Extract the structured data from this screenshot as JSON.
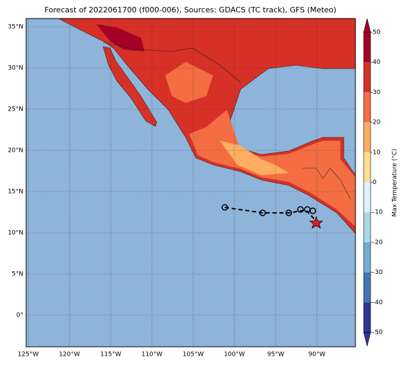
{
  "title": "Forecast of 2022061700 (f000-006), Sources: GDACS (TC track), GFS (Meteo)",
  "latitude_labels": [
    {
      "value": 35,
      "label": "35°N"
    },
    {
      "value": 30,
      "label": "30°N"
    },
    {
      "value": 25,
      "label": "25°N"
    },
    {
      "value": 20,
      "label": "20°N"
    },
    {
      "value": 15,
      "label": "15°N"
    },
    {
      "value": 10,
      "label": "10°N"
    },
    {
      "value": 5,
      "label": "5°N"
    },
    {
      "value": 0,
      "label": "0°"
    }
  ],
  "longitude_labels": [
    {
      "value": -125,
      "label": "125°W"
    },
    {
      "value": -120,
      "label": "120°W"
    },
    {
      "value": -115,
      "label": "115°W"
    },
    {
      "value": -110,
      "label": "110°W"
    },
    {
      "value": -105,
      "label": "105°W"
    },
    {
      "value": -100,
      "label": "100°W"
    },
    {
      "value": -95,
      "label": "95°W"
    },
    {
      "value": -90,
      "label": "90°W"
    }
  ],
  "colorbar": {
    "label": "Max Temperature (°C)",
    "ticks": [
      50,
      40,
      30,
      20,
      10,
      0,
      -10,
      -20,
      -30,
      -40,
      -50
    ],
    "colors": [
      "#a50026",
      "#d73027",
      "#f46d43",
      "#fdae61",
      "#fee090",
      "#e0f3f8",
      "#abd9e9",
      "#74add1",
      "#4575b4",
      "#313695"
    ]
  }
}
